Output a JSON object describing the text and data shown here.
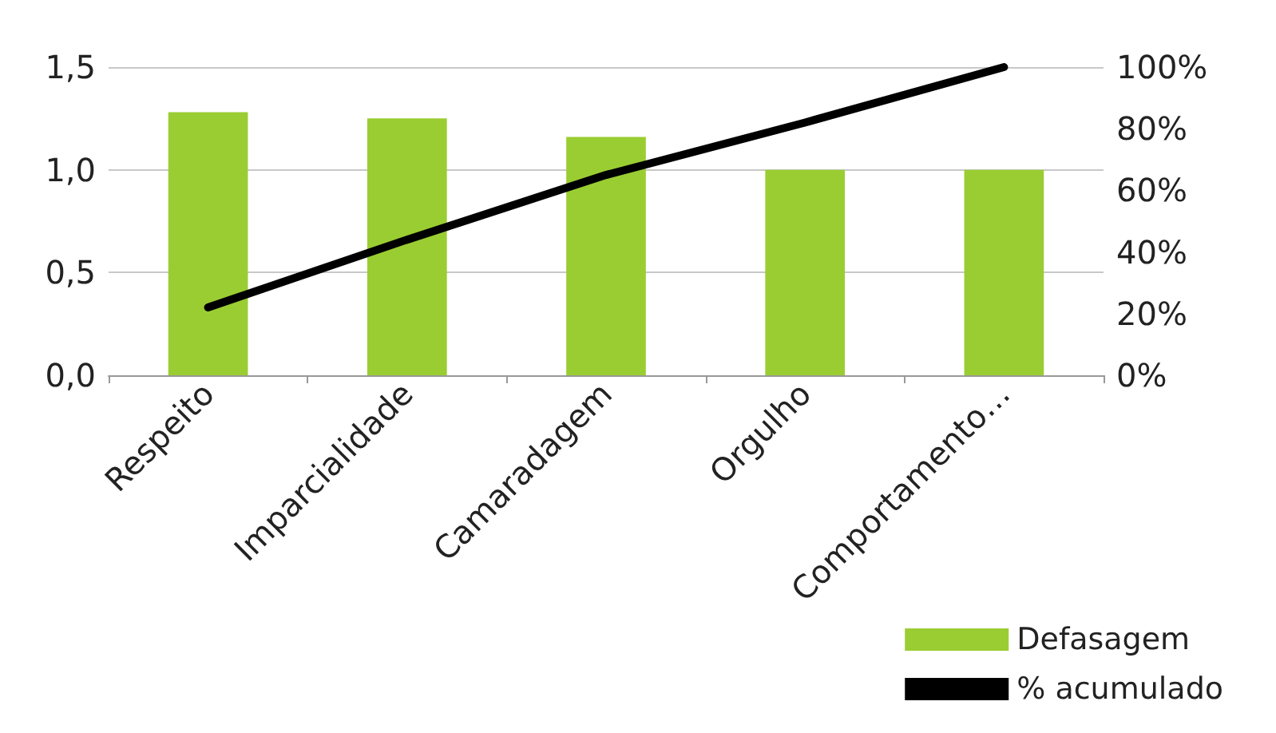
{
  "chart_data": {
    "type": "bar",
    "categories": [
      "Respeito",
      "Imparcialidade",
      "Camaradagem",
      "Orgulho",
      "Comportamento…"
    ],
    "series": [
      {
        "name": "Defasagem",
        "color": "#9acd32",
        "values": [
          1.28,
          1.25,
          1.16,
          1.0,
          1.0
        ]
      },
      {
        "name": "% acumulado",
        "type": "line",
        "axis": "y2",
        "color": "#000000",
        "values": [
          22,
          44,
          65,
          82,
          100
        ]
      }
    ],
    "ylim": [
      0,
      1.5
    ],
    "yticks": [
      {
        "value": 0,
        "label": "0,0"
      },
      {
        "value": 0.5,
        "label": "0,5"
      },
      {
        "value": 1,
        "label": "1,0"
      },
      {
        "value": 1.5,
        "label": "1,5"
      }
    ],
    "y2lim": [
      0,
      100
    ],
    "y2ticks": [
      {
        "value": 0,
        "label": "0%"
      },
      {
        "value": 20,
        "label": "20%"
      },
      {
        "value": 40,
        "label": "40%"
      },
      {
        "value": 60,
        "label": "60%"
      },
      {
        "value": 80,
        "label": "80%"
      },
      {
        "value": 100,
        "label": "100%"
      }
    ],
    "grid": "y",
    "legend": "bottom right",
    "marker": "none",
    "line_style": "solid"
  }
}
